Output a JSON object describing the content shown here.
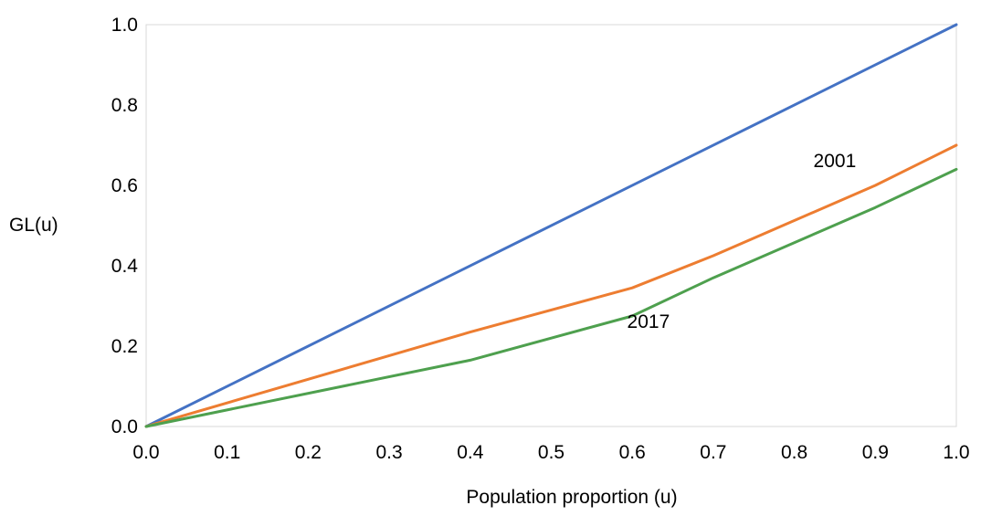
{
  "chart_data": {
    "type": "line",
    "title": "",
    "xlabel": "Population proportion (u)",
    "ylabel": "GL(u)",
    "xlim": [
      0,
      1
    ],
    "ylim": [
      0,
      1
    ],
    "x_ticks": [
      "0.0",
      "0.1",
      "0.2",
      "0.3",
      "0.4",
      "0.5",
      "0.6",
      "0.7",
      "0.8",
      "0.9",
      "1.0"
    ],
    "y_ticks": [
      "0.0",
      "0.2",
      "0.4",
      "0.6",
      "0.8",
      "1.0"
    ],
    "grid": false,
    "legend": "none",
    "series": [
      {
        "color": "#4472c4",
        "x": [
          0,
          1
        ],
        "y": [
          0,
          1
        ]
      },
      {
        "name": "2001",
        "color": "#ed7d31",
        "x": [
          0,
          0.4,
          0.6,
          0.7,
          0.9,
          1.0
        ],
        "y": [
          0,
          0.235,
          0.345,
          0.425,
          0.6,
          0.7
        ]
      },
      {
        "name": "2017",
        "color": "#4ea04e",
        "x": [
          0,
          0.4,
          0.6,
          0.7,
          0.9,
          1.0
        ],
        "y": [
          0,
          0.165,
          0.275,
          0.37,
          0.545,
          0.64
        ]
      }
    ],
    "annotations": [
      {
        "text": "2001",
        "x": 0.85,
        "y": 0.645
      },
      {
        "text": "2017",
        "x": 0.62,
        "y": 0.245
      }
    ]
  }
}
